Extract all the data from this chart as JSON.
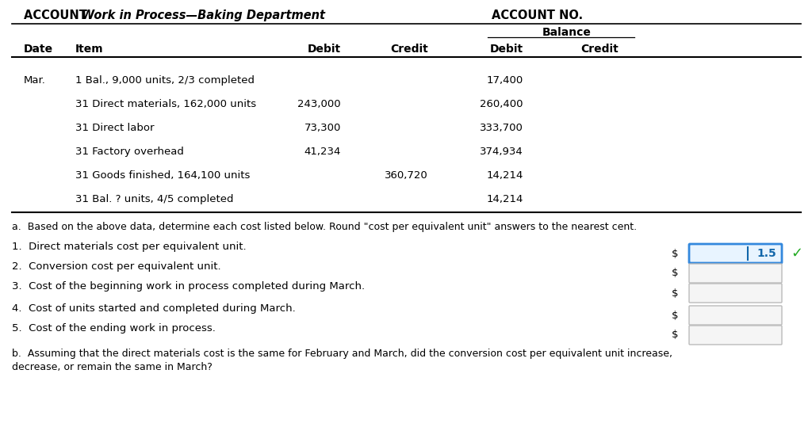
{
  "bg_color": "#ffffff",
  "text_color": "#000000",
  "account_bold": "ACCOUNT ",
  "account_italic_bold": "Work in Process—Baking Department",
  "account_no": "ACCOUNT NO.",
  "balance_label": "Balance",
  "col_date": "Date",
  "col_item": "Item",
  "col_debit": "Debit",
  "col_credit": "Credit",
  "table_rows": [
    [
      "Mar.",
      "1 Bal., 9,000 units, 2/3 completed",
      "",
      "",
      "17,400",
      ""
    ],
    [
      "",
      "31 Direct materials, 162,000 units",
      "243,000",
      "",
      "260,400",
      ""
    ],
    [
      "",
      "31 Direct labor",
      "73,300",
      "",
      "333,700",
      ""
    ],
    [
      "",
      "31 Factory overhead",
      "41,234",
      "",
      "374,934",
      ""
    ],
    [
      "",
      "31 Goods finished, 164,100 units",
      "",
      "360,720",
      "14,214",
      ""
    ],
    [
      "",
      "31 Bal. ? units, 4/5 completed",
      "",
      "",
      "14,214",
      ""
    ]
  ],
  "instruction_a": "a.  Based on the above data, determine each cost listed below. Round \"cost per equivalent unit\" answers to the nearest cent.",
  "questions": [
    "1.  Direct materials cost per equivalent unit.",
    "2.  Conversion cost per equivalent unit.",
    "3.  Cost of the beginning work in process completed during March.",
    "4.  Cost of units started and completed during March.",
    "5.  Cost of the ending work in process."
  ],
  "answer_1": "1.5",
  "instruction_b_1": "b.  Assuming that the direct materials cost is the same for February and March, did the conversion cost per equivalent unit increase,",
  "instruction_b_2": "decrease, or remain the same in March?",
  "checkmark_color": "#22aa22",
  "box_active_edge": "#3388dd",
  "box_active_face": "#e8f4ff",
  "box_inactive_edge": "#bbbbbb",
  "box_inactive_face": "#f5f5f5",
  "answer_color": "#1166aa"
}
